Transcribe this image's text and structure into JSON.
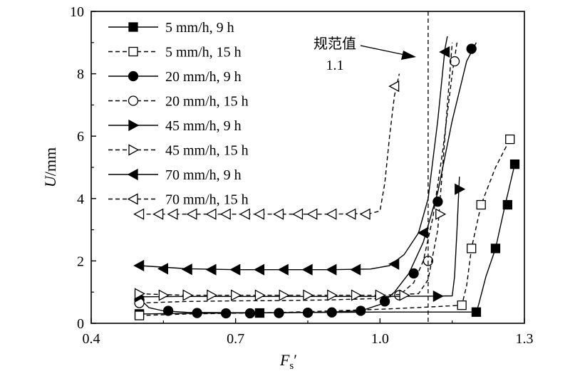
{
  "chart_data": {
    "type": "line",
    "title": "",
    "xlabel": "F",
    "xlabel_sub": "s",
    "xlabel_prime": "′",
    "ylabel": "U/mm",
    "xlim": [
      0.4,
      1.3
    ],
    "ylim": [
      0,
      10
    ],
    "xticks": [
      0.4,
      0.7,
      1.0,
      1.3
    ],
    "xtick_labels": [
      "0.4",
      "0.7",
      "1.0",
      "1.3"
    ],
    "yticks": [
      0,
      2,
      4,
      6,
      8,
      10
    ],
    "ytick_labels": [
      "0",
      "2",
      "4",
      "6",
      "8",
      "10"
    ],
    "grid": false,
    "legend_position": "top-left",
    "reference_line": {
      "x": 1.1,
      "label_line1": "规范值",
      "label_line2": "1.1"
    },
    "series": [
      {
        "name": "5 mm/h, 9 h",
        "marker": "square-filled",
        "dash": "solid",
        "curve": [
          [
            0.5,
            0.3
          ],
          [
            0.6,
            0.32
          ],
          [
            0.7,
            0.33
          ],
          [
            0.8,
            0.34
          ],
          [
            0.9,
            0.35
          ],
          [
            1.0,
            0.36
          ],
          [
            1.1,
            0.36
          ],
          [
            1.2,
            0.36
          ],
          [
            1.205,
            0.6
          ],
          [
            1.22,
            1.5
          ],
          [
            1.24,
            2.4
          ],
          [
            1.26,
            3.8
          ],
          [
            1.28,
            5.1
          ]
        ],
        "markers": [
          [
            0.5,
            0.3
          ],
          [
            0.75,
            0.33
          ],
          [
            1.2,
            0.36
          ],
          [
            1.24,
            2.4
          ],
          [
            1.265,
            3.8
          ],
          [
            1.28,
            5.1
          ]
        ]
      },
      {
        "name": "5 mm/h, 15 h",
        "marker": "square-open",
        "dash": "dashed",
        "curve": [
          [
            0.5,
            0.25
          ],
          [
            0.6,
            0.3
          ],
          [
            0.8,
            0.35
          ],
          [
            1.0,
            0.45
          ],
          [
            1.1,
            0.52
          ],
          [
            1.17,
            0.58
          ],
          [
            1.18,
            1.2
          ],
          [
            1.19,
            2.4
          ],
          [
            1.21,
            3.8
          ],
          [
            1.24,
            5.0
          ],
          [
            1.27,
            5.9
          ]
        ],
        "markers": [
          [
            0.5,
            0.25
          ],
          [
            1.17,
            0.58
          ],
          [
            1.19,
            2.4
          ],
          [
            1.21,
            3.8
          ],
          [
            1.27,
            5.9
          ]
        ]
      },
      {
        "name": "20 mm/h, 9 h",
        "marker": "circle-filled",
        "dash": "solid",
        "curve": [
          [
            0.5,
            0.8
          ],
          [
            0.52,
            0.5
          ],
          [
            0.55,
            0.4
          ],
          [
            0.6,
            0.35
          ],
          [
            0.7,
            0.34
          ],
          [
            0.8,
            0.34
          ],
          [
            0.9,
            0.36
          ],
          [
            0.96,
            0.4
          ],
          [
            1.0,
            0.6
          ],
          [
            1.03,
            1.0
          ],
          [
            1.06,
            1.6
          ],
          [
            1.09,
            2.6
          ],
          [
            1.12,
            4.2
          ],
          [
            1.15,
            6.5
          ],
          [
            1.18,
            8.4
          ],
          [
            1.2,
            9.0
          ]
        ],
        "markers": [
          [
            0.5,
            0.75
          ],
          [
            0.56,
            0.4
          ],
          [
            0.62,
            0.33
          ],
          [
            0.68,
            0.32
          ],
          [
            0.73,
            0.32
          ],
          [
            0.79,
            0.33
          ],
          [
            0.85,
            0.34
          ],
          [
            0.9,
            0.35
          ],
          [
            0.96,
            0.4
          ],
          [
            1.01,
            0.7
          ],
          [
            1.07,
            1.6
          ],
          [
            1.12,
            3.9
          ],
          [
            1.19,
            8.8
          ]
        ]
      },
      {
        "name": "20 mm/h, 15 h",
        "marker": "circle-open",
        "dash": "dashed",
        "curve": [
          [
            0.5,
            0.65
          ],
          [
            0.6,
            0.7
          ],
          [
            0.7,
            0.72
          ],
          [
            0.8,
            0.73
          ],
          [
            0.9,
            0.75
          ],
          [
            1.0,
            0.8
          ],
          [
            1.04,
            0.9
          ],
          [
            1.07,
            1.3
          ],
          [
            1.09,
            2.0
          ],
          [
            1.11,
            3.4
          ],
          [
            1.13,
            5.5
          ],
          [
            1.15,
            8.0
          ],
          [
            1.16,
            9.0
          ]
        ],
        "markers": [
          [
            0.5,
            0.65
          ],
          [
            1.04,
            0.9
          ],
          [
            1.1,
            2.0
          ],
          [
            1.155,
            8.4
          ]
        ]
      },
      {
        "name": "45 mm/h, 9 h",
        "marker": "triangle-right-filled",
        "dash": "solid",
        "curve": [
          [
            0.5,
            0.85
          ],
          [
            0.6,
            0.86
          ],
          [
            0.7,
            0.86
          ],
          [
            0.8,
            0.86
          ],
          [
            0.9,
            0.86
          ],
          [
            1.0,
            0.86
          ],
          [
            1.1,
            0.87
          ],
          [
            1.15,
            0.88
          ],
          [
            1.155,
            1.5
          ],
          [
            1.16,
            3.0
          ],
          [
            1.165,
            4.7
          ]
        ],
        "markers": [
          [
            0.5,
            0.85
          ],
          [
            1.12,
            0.87
          ],
          [
            1.165,
            4.3
          ]
        ]
      },
      {
        "name": "45 mm/h, 15 h",
        "marker": "triangle-right-open",
        "dash": "dashed",
        "curve": [
          [
            0.5,
            0.95
          ],
          [
            0.55,
            0.92
          ],
          [
            0.6,
            0.9
          ],
          [
            0.8,
            0.9
          ],
          [
            1.0,
            0.9
          ],
          [
            1.08,
            0.95
          ],
          [
            1.1,
            1.4
          ],
          [
            1.12,
            3.0
          ],
          [
            1.13,
            5.0
          ],
          [
            1.14,
            7.0
          ],
          [
            1.15,
            9.0
          ]
        ],
        "markers": [
          [
            0.5,
            0.95
          ],
          [
            0.55,
            0.9
          ],
          [
            0.6,
            0.9
          ],
          [
            0.65,
            0.9
          ],
          [
            0.7,
            0.9
          ],
          [
            0.75,
            0.9
          ],
          [
            0.8,
            0.9
          ],
          [
            0.85,
            0.9
          ],
          [
            0.9,
            0.9
          ],
          [
            0.95,
            0.9
          ],
          [
            1.0,
            0.9
          ],
          [
            1.05,
            0.9
          ],
          [
            1.125,
            3.5
          ]
        ]
      },
      {
        "name": "70 mm/h, 9 h",
        "marker": "triangle-left-filled",
        "dash": "solid",
        "curve": [
          [
            0.5,
            1.85
          ],
          [
            0.6,
            1.75
          ],
          [
            0.7,
            1.72
          ],
          [
            0.8,
            1.72
          ],
          [
            0.9,
            1.72
          ],
          [
            0.98,
            1.74
          ],
          [
            1.02,
            1.85
          ],
          [
            1.05,
            2.2
          ],
          [
            1.08,
            2.9
          ],
          [
            1.1,
            4.0
          ],
          [
            1.12,
            6.5
          ],
          [
            1.135,
            8.8
          ],
          [
            1.14,
            9.2
          ]
        ],
        "markers": [
          [
            0.5,
            1.85
          ],
          [
            0.55,
            1.75
          ],
          [
            0.6,
            1.73
          ],
          [
            0.65,
            1.72
          ],
          [
            0.7,
            1.72
          ],
          [
            0.75,
            1.72
          ],
          [
            0.8,
            1.72
          ],
          [
            0.85,
            1.72
          ],
          [
            0.9,
            1.72
          ],
          [
            0.95,
            1.72
          ],
          [
            1.03,
            1.9
          ],
          [
            1.09,
            2.9
          ],
          [
            1.135,
            8.7
          ]
        ]
      },
      {
        "name": "70 mm/h, 15 h",
        "marker": "triangle-left-open",
        "dash": "dashed",
        "curve": [
          [
            0.5,
            3.5
          ],
          [
            0.6,
            3.5
          ],
          [
            0.7,
            3.5
          ],
          [
            0.8,
            3.5
          ],
          [
            0.9,
            3.5
          ],
          [
            0.98,
            3.52
          ],
          [
            1.0,
            3.6
          ],
          [
            1.01,
            4.5
          ],
          [
            1.02,
            6.0
          ],
          [
            1.03,
            7.3
          ],
          [
            1.04,
            8.0
          ]
        ],
        "markers": [
          [
            0.5,
            3.5
          ],
          [
            0.54,
            3.5
          ],
          [
            0.57,
            3.5
          ],
          [
            0.61,
            3.5
          ],
          [
            0.65,
            3.5
          ],
          [
            0.68,
            3.5
          ],
          [
            0.72,
            3.5
          ],
          [
            0.75,
            3.5
          ],
          [
            0.79,
            3.5
          ],
          [
            0.83,
            3.5
          ],
          [
            0.86,
            3.5
          ],
          [
            0.9,
            3.5
          ],
          [
            0.94,
            3.5
          ],
          [
            0.97,
            3.5
          ],
          [
            1.03,
            7.6
          ]
        ]
      }
    ]
  }
}
